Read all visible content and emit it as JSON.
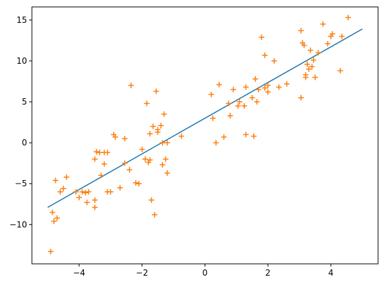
{
  "chart_data": {
    "type": "scatter",
    "title": "",
    "xlabel": "",
    "ylabel": "",
    "xlim": [
      -5.5,
      5.5
    ],
    "ylim": [
      -14.8,
      16.6
    ],
    "xticks": [
      -4,
      -2,
      0,
      2,
      4
    ],
    "yticks": [
      -10,
      -5,
      0,
      5,
      10,
      15
    ],
    "xtick_labels": [
      "−4",
      "−2",
      "0",
      "2",
      "4"
    ],
    "ytick_labels": [
      "−10",
      "−5",
      "0",
      "5",
      "10",
      "15"
    ],
    "grid": false,
    "legend": "none",
    "colors": {
      "line": "#1f77b4",
      "points": "#ff7f0e",
      "axes": "#000000"
    },
    "series": [
      {
        "kind": "line",
        "x": [
          -5,
          5
        ],
        "y": [
          -7.9,
          13.9
        ]
      },
      {
        "kind": "scatter",
        "marker": "plus",
        "x": [
          -4.9,
          -4.8,
          -4.7,
          -4.6,
          -4.5,
          -4.4,
          -4.75,
          -4.85,
          -4.1,
          -4.0,
          -3.8,
          -3.75,
          -3.5,
          -3.5,
          -3.45,
          -3.35,
          -3.3,
          -3.2,
          -3.1,
          -3.1,
          -3.0,
          -2.9,
          -2.85,
          -2.7,
          -2.55,
          -2.55,
          -2.4,
          -2.35,
          -2.2,
          -2.1,
          -2.0,
          -1.9,
          -1.85,
          -1.8,
          -1.75,
          -1.75,
          -1.7,
          -1.6,
          -1.5,
          -1.5,
          -1.4,
          -1.35,
          -1.3,
          -1.25,
          -1.2,
          -1.2,
          -0.75,
          0.2,
          0.25,
          0.35,
          0.45,
          0.6,
          0.75,
          0.8,
          0.9,
          1.05,
          1.1,
          1.25,
          1.3,
          1.3,
          1.5,
          1.55,
          1.6,
          1.65,
          1.7,
          1.8,
          1.9,
          1.9,
          2.0,
          2.0,
          2.2,
          2.35,
          2.6,
          3.05,
          3.05,
          3.1,
          3.15,
          3.2,
          3.2,
          3.25,
          3.3,
          3.35,
          3.4,
          3.45,
          3.5,
          3.6,
          3.75,
          3.9,
          4.0,
          4.05,
          4.3,
          4.35,
          4.55,
          -1.65,
          -1.55,
          -3.9,
          -3.7,
          -3.5,
          -3.2,
          -1.35
        ],
        "y": [
          -13.3,
          -9.6,
          -9.2,
          -6.0,
          -5.6,
          -4.2,
          -4.6,
          -8.5,
          -6.0,
          -6.7,
          -6.1,
          -7.3,
          -7.9,
          -7.0,
          -1.1,
          -1.2,
          -4.0,
          -2.6,
          -6.0,
          -1.2,
          -6.0,
          1.0,
          0.7,
          -5.5,
          0.5,
          -2.5,
          -3.3,
          7.0,
          -4.9,
          -5.0,
          -0.8,
          -2.0,
          4.8,
          -2.4,
          1.1,
          -2.1,
          -7.0,
          -8.8,
          1.3,
          1.6,
          2.1,
          -2.7,
          3.5,
          -2.0,
          0.0,
          -3.7,
          0.8,
          5.9,
          3.0,
          0.0,
          7.1,
          0.7,
          4.8,
          3.3,
          6.5,
          4.5,
          5.0,
          4.5,
          6.8,
          1.0,
          5.5,
          0.8,
          7.8,
          5.0,
          6.5,
          12.9,
          10.7,
          6.7,
          6.2,
          7.0,
          10.0,
          6.8,
          7.2,
          13.7,
          5.5,
          12.2,
          11.9,
          8.0,
          8.3,
          9.6,
          9.0,
          11.3,
          9.3,
          10.1,
          8.0,
          11.0,
          14.5,
          12.1,
          13.0,
          13.3,
          8.8,
          13.0,
          15.3,
          2.0,
          6.3,
          -6.0,
          -6.0,
          -2.0,
          -1.2,
          0.0
        ]
      }
    ]
  }
}
